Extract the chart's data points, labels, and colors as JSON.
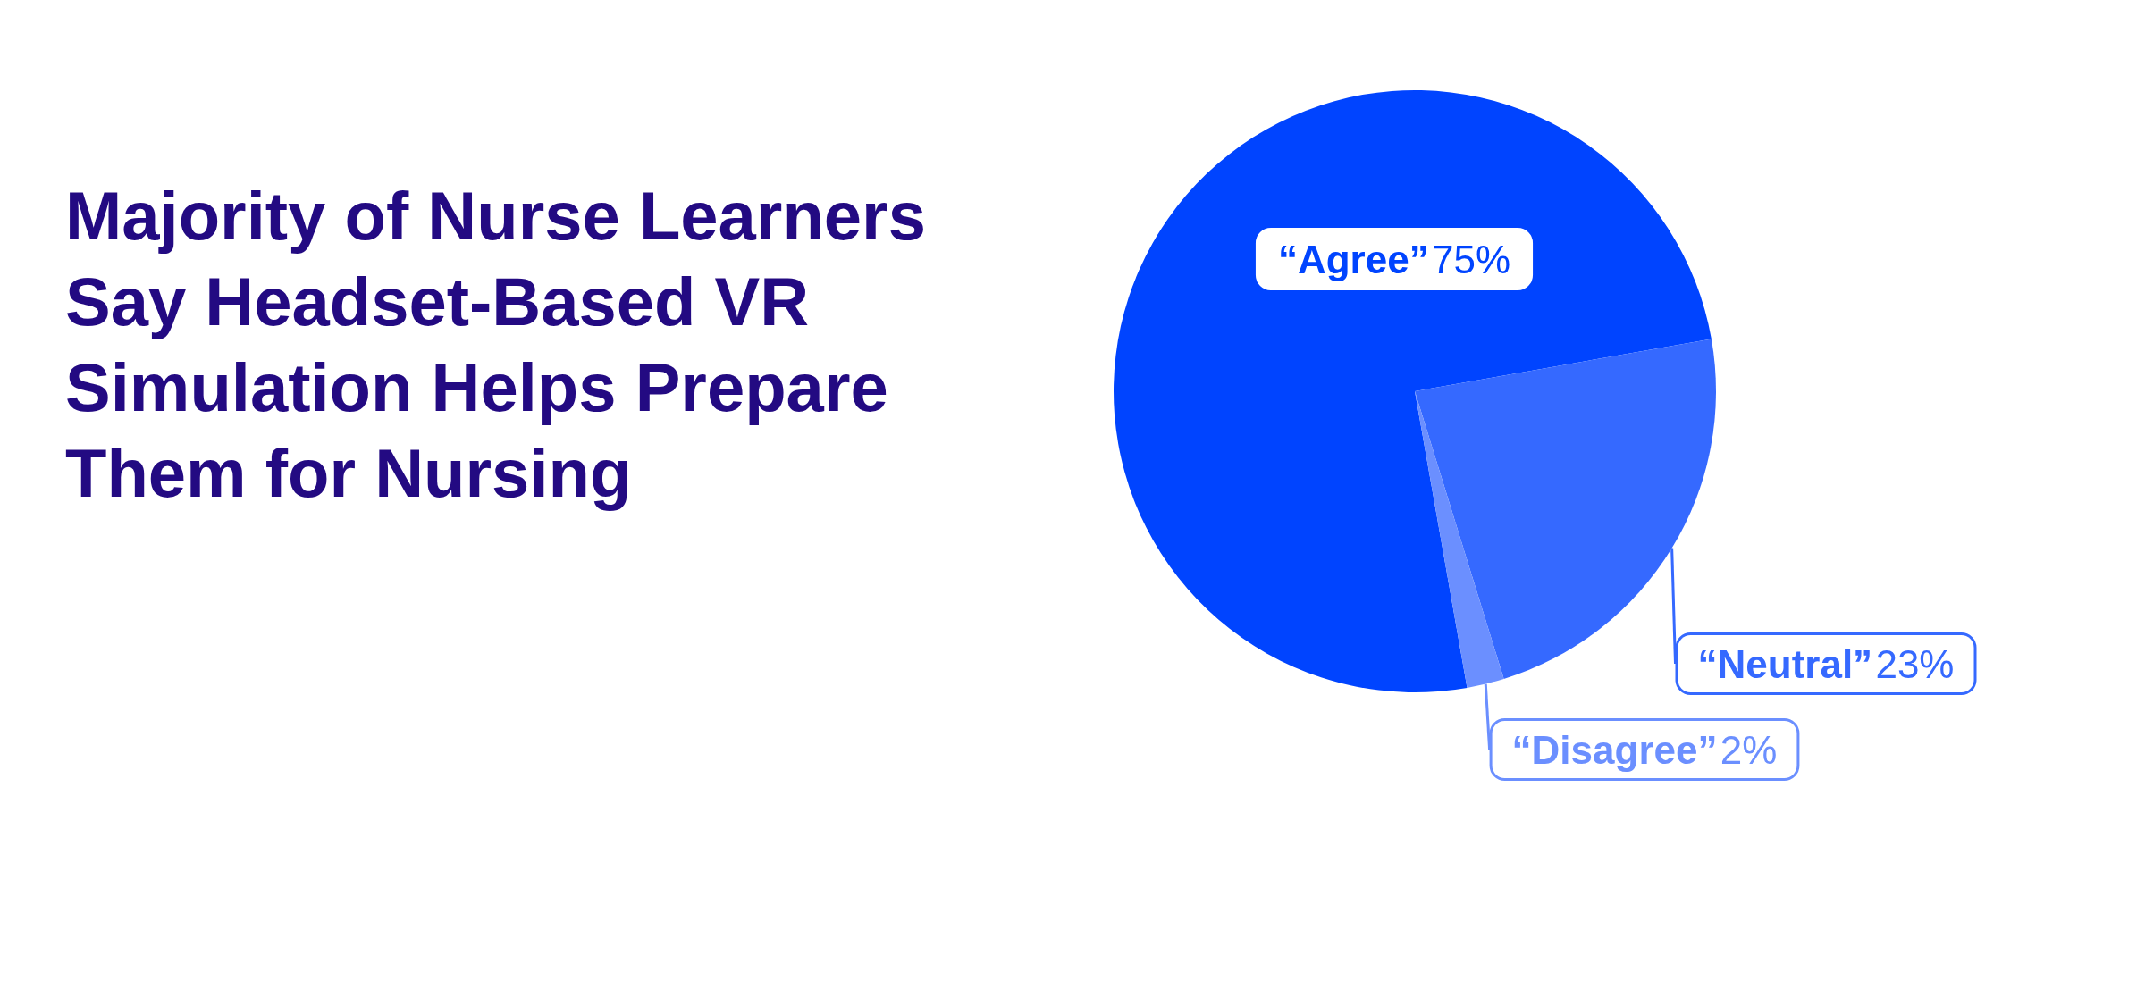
{
  "chart_data": {
    "type": "pie",
    "title": "Majority of Nurse Learners Say Headset-Based VR Simulation Helps Prepare Them for Nursing",
    "categories": [
      "“Agree”",
      "“Neutral”",
      "“Disagree”"
    ],
    "values": [
      75,
      23,
      2
    ],
    "colors": [
      "#0044ff",
      "#3569ff",
      "#6b8fff"
    ],
    "value_labels": [
      "75%",
      "23%",
      "2%"
    ],
    "legend": false
  }
}
